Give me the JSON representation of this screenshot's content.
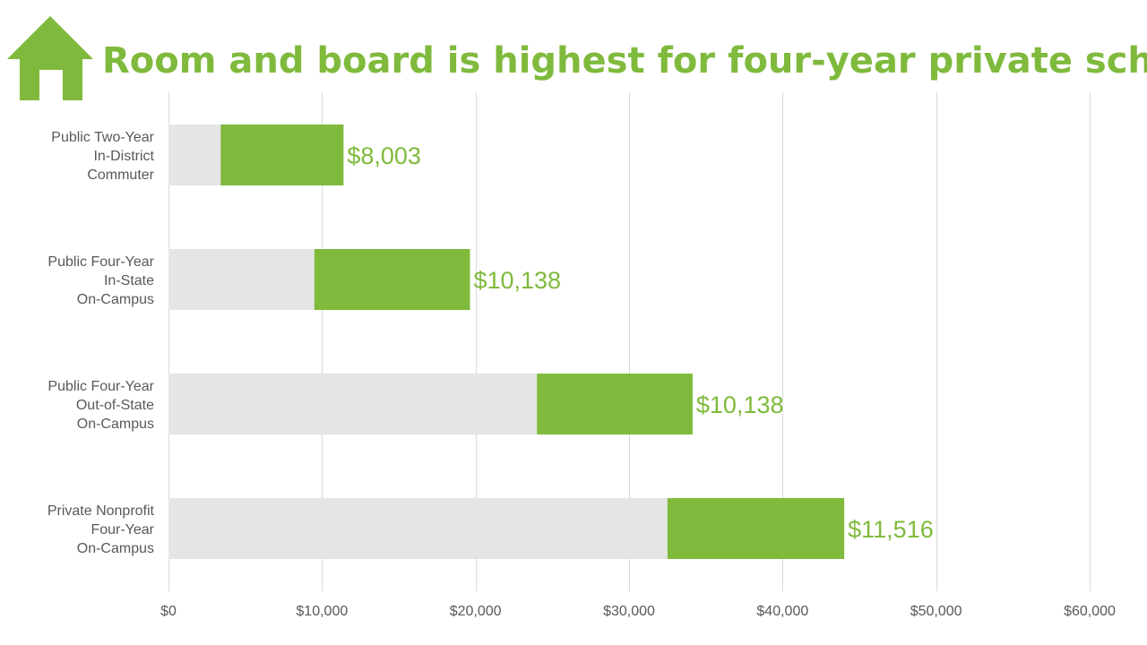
{
  "title": "Room and board is highest for four-year private schools",
  "colors": {
    "accent": "#7fba3d",
    "base_bar": "#e5e5e5",
    "axis_text": "#595959",
    "grid": "#d9d9d9",
    "background": "#ffffff"
  },
  "icons": {
    "title_icon": "house-icon"
  },
  "chart_data": {
    "type": "bar",
    "orientation": "horizontal",
    "stacked": true,
    "title": "Room and board is highest for four-year private schools",
    "xlabel": "",
    "ylabel": "",
    "categories": [
      [
        "Public Two-Year",
        "In-District",
        "Commuter"
      ],
      [
        "Public Four-Year",
        "In-State",
        "On-Campus"
      ],
      [
        "Public Four-Year",
        "Out-of-State",
        "On-Campus"
      ],
      [
        "Private Nonprofit",
        "Four-Year",
        "On-Campus"
      ]
    ],
    "series": [
      {
        "values": [
          3400,
          9500,
          24000,
          32500
        ],
        "color": "#e5e5e5"
      },
      {
        "values": [
          8003,
          10138,
          10138,
          11516
        ],
        "color": "#7fba3d"
      }
    ],
    "data_labels": [
      "$8,003",
      "$10,138",
      "$10,138",
      "$11,516"
    ],
    "xlim": [
      0,
      60000
    ],
    "x_ticks": [
      0,
      10000,
      20000,
      30000,
      40000,
      50000,
      60000
    ],
    "x_tick_labels": [
      "$0",
      "$10,000",
      "$20,000",
      "$30,000",
      "$40,000",
      "$50,000",
      "$60,000"
    ],
    "grid": true,
    "legend": "none"
  }
}
